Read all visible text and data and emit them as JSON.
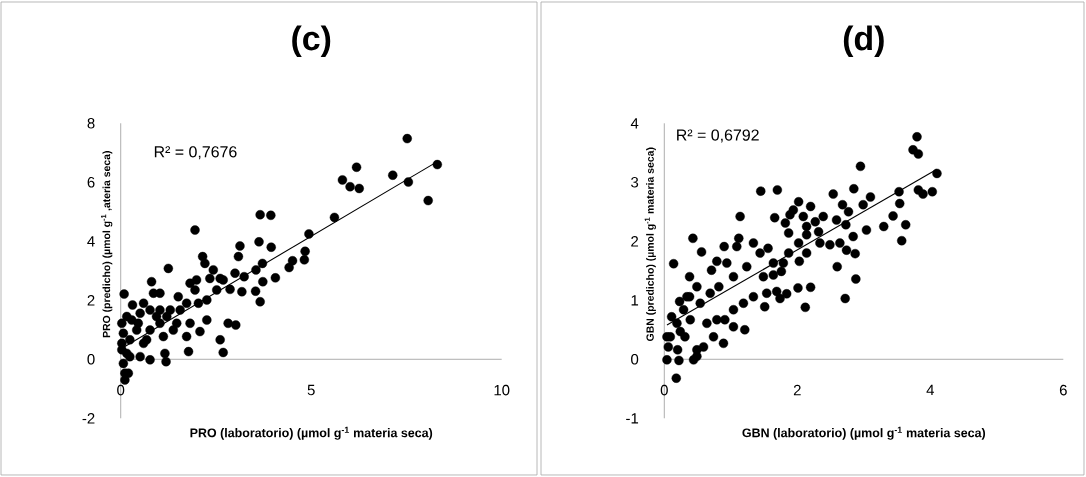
{
  "chart_data": [
    {
      "type": "scatter",
      "title": "(c)",
      "xlabel": "PRO (laboratorio) (µmol g$^{-1}$ materia seca)",
      "ylabel": "PRO (predicho) (µmol g$^{-1}$ ,ateria seca)",
      "annotations": [
        "R² = 0,7676"
      ],
      "xlim": [
        0,
        10
      ],
      "ylim": [
        -2,
        8
      ],
      "xticks": [
        0,
        5,
        10
      ],
      "yticks": [
        -2,
        0,
        2,
        4,
        6,
        8
      ],
      "marker": "circle",
      "series": [
        {
          "color": "#000000",
          "x": [
            7.52,
            8.31,
            7.14,
            7.55,
            8.07,
            6.19,
            5.82,
            6.02,
            6.26,
            5.61,
            4.94,
            4.84,
            4.82,
            4.51,
            4.42,
            3.66,
            3.94,
            3.63,
            3.95,
            4.06,
            3.72,
            3.55,
            3.73,
            3.54,
            3.66,
            3.13,
            3.09,
            3.0,
            3.24,
            3.18,
            2.87,
            2.69,
            2.61,
            2.52,
            2.82,
            3.02,
            2.61,
            2.69,
            1.95,
            2.15,
            2.21,
            2.43,
            2.34,
            1.99,
            1.82,
            2.26,
            2.04,
            2.26,
            2.08,
            1.78,
            1.25,
            1.51,
            1.73,
            1.3,
            1.03,
            0.86,
            0.81,
            0.6,
            0.31,
            0.09,
            1.03,
            1.38,
            1.73,
            1.47,
            1.16,
            1.19,
            0.77,
            0.51,
            0.68,
            0.94,
            0.46,
            0.24,
            0.16,
            0.11,
            0.2,
            0.11,
            0.07,
            0.03,
            0.03,
            0.07,
            0.16,
            0.29,
            0.42,
            0.6,
            0.77,
            1.03,
            1.21,
            1.56,
            0.77,
            0.51,
            0.03,
            0.24,
            1.12,
            1.82,
            1.95
          ],
          "values": [
            7.48,
            6.6,
            6.24,
            6.01,
            5.38,
            6.51,
            6.08,
            5.85,
            5.79,
            4.81,
            4.25,
            3.66,
            3.37,
            3.34,
            3.11,
            4.9,
            4.88,
            3.98,
            3.8,
            2.76,
            3.25,
            3.03,
            2.63,
            2.31,
            1.95,
            3.84,
            3.48,
            2.92,
            2.8,
            2.29,
            2.37,
            2.69,
            2.74,
            2.35,
            1.22,
            1.16,
            0.66,
            0.23,
            4.38,
            3.48,
            3.25,
            3.03,
            2.74,
            2.69,
            2.58,
            2.01,
            1.9,
            1.33,
            0.94,
            0.26,
            3.08,
            2.12,
            1.9,
            1.67,
            2.24,
            2.24,
            2.63,
            1.9,
            1.84,
            2.21,
            1.22,
            0.99,
            0.77,
            1.22,
            0.2,
            -0.08,
            -0.02,
            0.09,
            0.66,
            1.45,
            1.22,
            0.66,
            0.2,
            -0.47,
            -0.47,
            -0.7,
            -0.14,
            0.54,
            1.22,
            0.88,
            1.45,
            1.33,
            0.99,
            0.54,
            0.99,
            1.67,
            1.45,
            1.67,
            1.67,
            1.56,
            0.32,
            0.09,
            0.77,
            1.22,
            2.35
          ]
        },
        {
          "type": "line",
          "color": "#000000",
          "marker": "none",
          "x": [
            0,
            8.31
          ],
          "values": [
            0.35,
            6.7
          ]
        }
      ]
    },
    {
      "type": "scatter",
      "title": "(d)",
      "xlabel": "GBN (laboratorio) (µmol g$^{-1}$ materia seca)",
      "ylabel": "GBN (predicho) (µmol g$^{-1}$ materia seca)",
      "annotations": [
        "R² = 0,6792"
      ],
      "xlim": [
        0,
        6
      ],
      "ylim": [
        -1,
        4
      ],
      "xticks": [
        0,
        2,
        4,
        6
      ],
      "yticks": [
        -1,
        0,
        1,
        2,
        3,
        4
      ],
      "marker": "circle",
      "series": [
        {
          "color": "#000000",
          "x": [
            3.8,
            3.74,
            3.82,
            4.1,
            2.95,
            1.45,
            1.7,
            2.85,
            2.54,
            3.53,
            3.82,
            3.89,
            4.03,
            3.54,
            3.1,
            2.99,
            2.68,
            2.77,
            2.2,
            2.39,
            3.44,
            3.63,
            3.3,
            3.04,
            2.73,
            2.59,
            2.84,
            3.57,
            2.02,
            1.94,
            1.89,
            1.66,
            1.82,
            2.09,
            2.14,
            2.27,
            2.32,
            2.14,
            2.34,
            2.49,
            2.64,
            2.74,
            2.87,
            2.6,
            2.88,
            2.72,
            1.87,
            2.02,
            1.87,
            2.14,
            2.03,
            1.79,
            1.76,
            1.64,
            1.56,
            1.44,
            1.34,
            1.12,
            1.14,
            1.09,
            0.9,
            0.79,
            0.94,
            0.71,
            0.56,
            0.43,
            0.14,
            0.38,
            0.49,
            0.23,
            0.38,
            0.54,
            0.69,
            0.82,
            1.04,
            1.24,
            1.49,
            1.64,
            1.69,
            1.74,
            1.84,
            2.01,
            2.2,
            2.12,
            1.54,
            1.51,
            1.34,
            1.19,
            1.21,
            1.04,
            1.04,
            0.91,
            0.89,
            0.74,
            0.79,
            0.64,
            0.59,
            0.49,
            0.44,
            0.49,
            0.31,
            0.19,
            0.11,
            0.09,
            0.06,
            0.04,
            0.22,
            0.18,
            0.29,
            0.39,
            0.24,
            0.04,
            0.2,
            0.34
          ],
          "values": [
            3.77,
            3.55,
            3.48,
            3.15,
            3.27,
            2.85,
            2.87,
            2.89,
            2.8,
            2.84,
            2.87,
            2.8,
            2.84,
            2.64,
            2.75,
            2.62,
            2.62,
            2.5,
            2.59,
            2.42,
            2.43,
            2.28,
            2.25,
            2.19,
            2.28,
            2.36,
            2.08,
            2.01,
            2.67,
            2.53,
            2.45,
            2.4,
            2.31,
            2.42,
            2.25,
            2.33,
            2.16,
            2.11,
            1.97,
            1.94,
            1.97,
            1.85,
            1.79,
            1.57,
            1.36,
            1.03,
            2.14,
            1.97,
            1.8,
            1.8,
            1.66,
            1.63,
            1.49,
            1.63,
            1.88,
            1.8,
            1.97,
            2.05,
            2.42,
            1.91,
            1.91,
            1.66,
            1.63,
            1.51,
            1.82,
            2.05,
            1.62,
            1.4,
            1.23,
            0.98,
            1.06,
            0.95,
            1.12,
            1.23,
            1.4,
            1.57,
            1.4,
            1.43,
            1.15,
            1.03,
            1.11,
            1.21,
            1.22,
            0.88,
            1.12,
            0.89,
            1.06,
            0.95,
            0.5,
            0.84,
            0.55,
            0.67,
            0.27,
            0.38,
            0.67,
            0.61,
            0.21,
            0.05,
            -0.01,
            0.16,
            0.38,
            0.61,
            0.72,
            0.38,
            0.21,
            -0.01,
            -0.02,
            -0.32,
            0.84,
            0.67,
            0.47,
            0.38,
            0.16,
            1.06
          ]
        },
        {
          "type": "line",
          "color": "#000000",
          "marker": "none",
          "x": [
            0.04,
            4.1
          ],
          "values": [
            0.58,
            3.22
          ]
        }
      ]
    }
  ]
}
